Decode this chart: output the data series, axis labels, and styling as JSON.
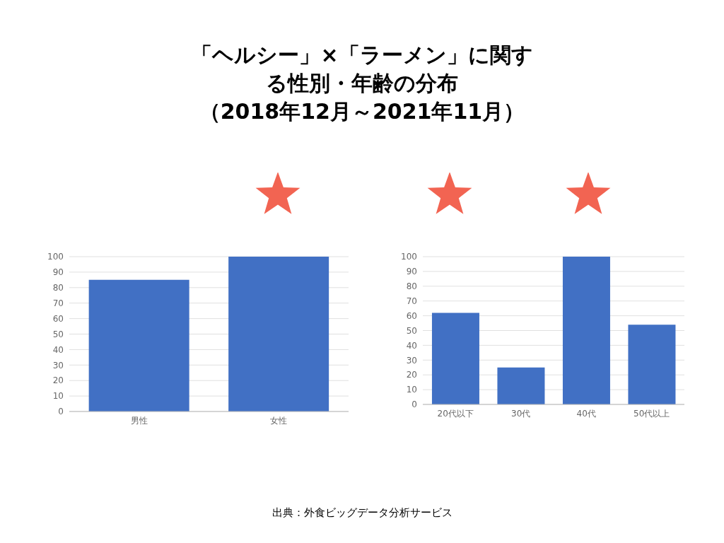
{
  "chart_data": [
    {
      "type": "bar",
      "title": "「ヘルシー」×「ラーメン」に関する性別・年齢の分布",
      "subtitle": "（2018年12月～2021年11月）",
      "categories": [
        "男性",
        "女性"
      ],
      "values": [
        85,
        100
      ],
      "color": "#4170c4",
      "ylim": [
        0,
        100
      ],
      "yticks": [
        0,
        10,
        20,
        30,
        40,
        50,
        60,
        70,
        80,
        90,
        100
      ],
      "grid": "y"
    },
    {
      "type": "bar",
      "categories": [
        "20代以下",
        "30代",
        "40代",
        "50代以上"
      ],
      "values": [
        62,
        25,
        100,
        54
      ],
      "color": "#4170c4",
      "ylim": [
        0,
        100
      ],
      "yticks": [
        0,
        10,
        20,
        30,
        40,
        50,
        60,
        70,
        80,
        90,
        100
      ],
      "grid": "y",
      "annotations": [
        "出典：外食ビッグデータ分析サービス"
      ]
    }
  ]
}
